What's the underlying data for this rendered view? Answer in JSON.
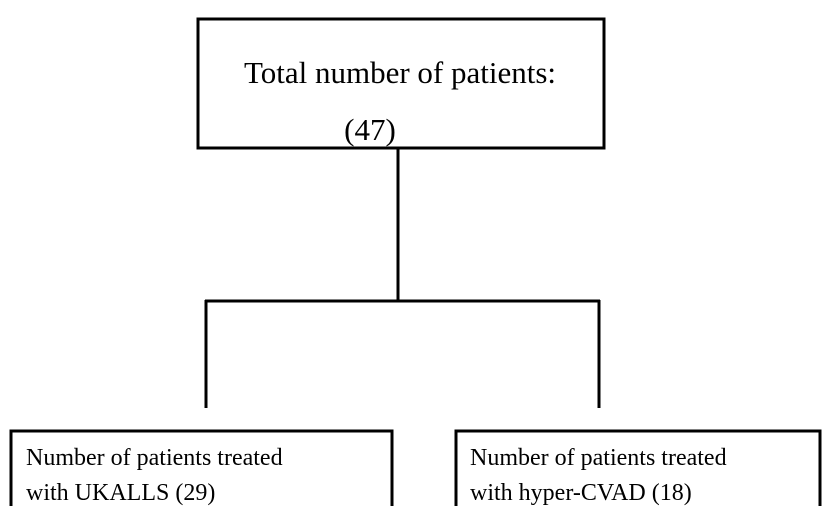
{
  "nodes": [
    {
      "lines": [
        "Total number of patients:",
        "(47)"
      ]
    },
    {
      "lines": [
        "Number of patients treated",
        "with UKALLS (29)"
      ]
    },
    {
      "lines": [
        "Number of patients treated",
        "with hyper-CVAD (18)"
      ]
    }
  ]
}
